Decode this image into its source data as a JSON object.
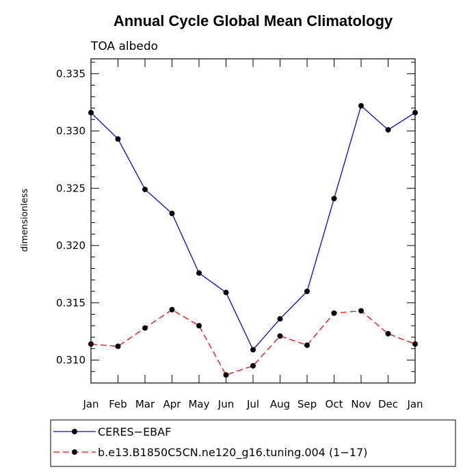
{
  "chart_data": {
    "type": "line",
    "title": "Annual Cycle Global Mean Climatology",
    "subtitle": "TOA albedo",
    "xlabel": "",
    "ylabel": "dimensionless",
    "categories": [
      "Jan",
      "Feb",
      "Mar",
      "Apr",
      "May",
      "Jun",
      "Jul",
      "Aug",
      "Sep",
      "Oct",
      "Nov",
      "Dec",
      "Jan"
    ],
    "ylim": [
      0.308,
      0.3363
    ],
    "yticks": [
      0.31,
      0.315,
      0.32,
      0.325,
      0.33,
      0.335
    ],
    "ytick_labels": [
      "0.310",
      "0.315",
      "0.320",
      "0.325",
      "0.330",
      "0.335"
    ],
    "legend_position": "bottom",
    "series": [
      {
        "name": "CERES−EBAF",
        "color": "#0000ff",
        "dash": "solid",
        "values": [
          0.3316,
          0.3293,
          0.3249,
          0.3228,
          0.3176,
          0.3159,
          0.3109,
          0.3136,
          0.316,
          0.3241,
          0.3322,
          0.3301,
          0.3316
        ]
      },
      {
        "name": "b.e13.B1850C5CN.ne120_g16.tuning.004 (1−17)",
        "color": "#ff0000",
        "dash": "dashed",
        "values": [
          0.3114,
          0.3112,
          0.3128,
          0.3144,
          0.313,
          0.3087,
          0.3095,
          0.3121,
          0.3113,
          0.3141,
          0.3143,
          0.3123,
          0.3114
        ]
      }
    ]
  }
}
